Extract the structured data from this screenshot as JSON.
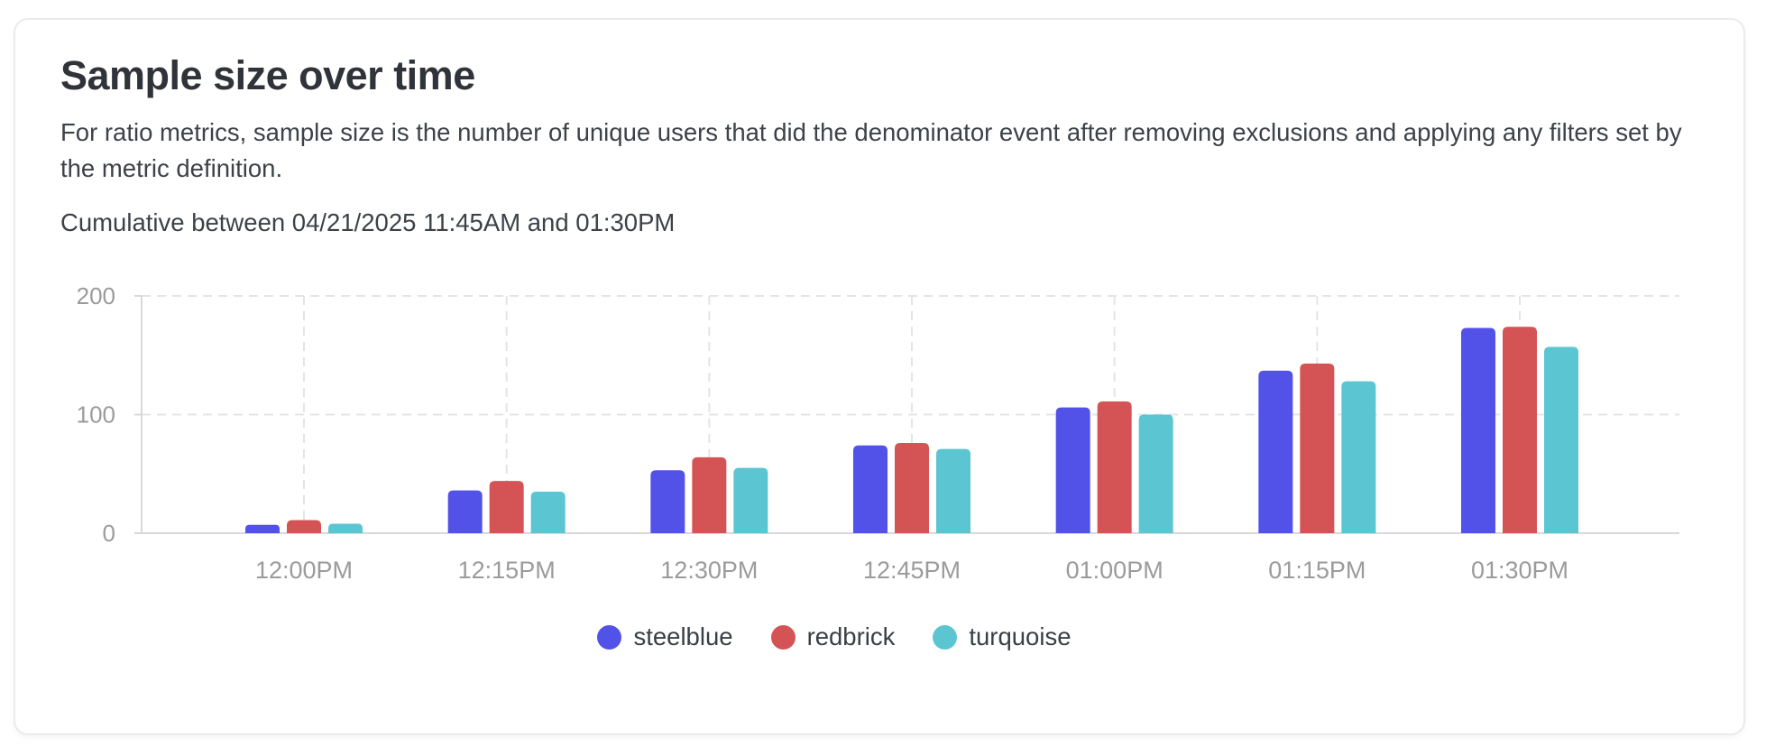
{
  "card": {
    "title": "Sample size over time",
    "description": "For ratio metrics, sample size is the number of unique users that did the denominator event after removing exclusions and applying any filters set by the metric definition.",
    "subtitle": "Cumulative between 04/21/2025 11:45AM and 01:30PM"
  },
  "chart_data": {
    "type": "bar",
    "title": "Sample size over time",
    "categories": [
      "12:00PM",
      "12:15PM",
      "12:30PM",
      "12:45PM",
      "01:00PM",
      "01:15PM",
      "01:30PM"
    ],
    "series": [
      {
        "name": "steelblue",
        "color": "#5251e8",
        "values": [
          7,
          36,
          53,
          74,
          106,
          137,
          173
        ]
      },
      {
        "name": "redbrick",
        "color": "#d45455",
        "values": [
          11,
          44,
          64,
          76,
          111,
          143,
          174
        ]
      },
      {
        "name": "turquoise",
        "color": "#5cc5d2",
        "values": [
          8,
          35,
          55,
          71,
          100,
          128,
          157
        ]
      }
    ],
    "xlabel": "",
    "ylabel": "",
    "ylim": [
      0,
      200
    ],
    "yticks": [
      0,
      100,
      200
    ],
    "grid": true,
    "legend_position": "bottom",
    "axis_colors": {
      "grid": "#e3e4e6",
      "axis": "#d7d9dc",
      "tick_label": "#9b9b9b"
    }
  }
}
